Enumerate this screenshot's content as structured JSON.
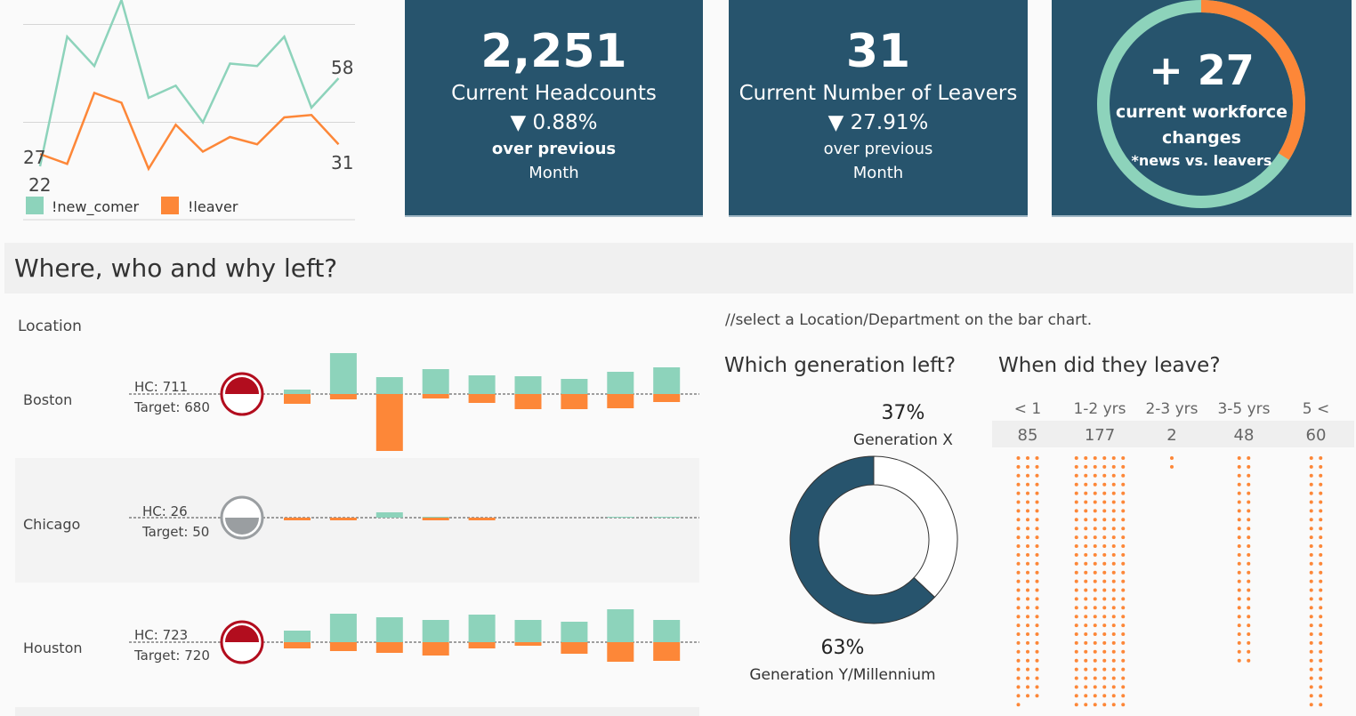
{
  "colors": {
    "new_comer": "#8dd3bb",
    "leaver": "#fd8738",
    "card_bg": "#27546d",
    "alert": "#b20d1e",
    "neutral": "#9a9ea1"
  },
  "kpis": [
    {
      "value": "2,251",
      "label": "Current Headcounts",
      "change": "▼ 0.88%",
      "sub1": "over previous",
      "sub2": "Month"
    },
    {
      "value": "31",
      "label": "Current Number of Leavers",
      "change": "▼ 27.91%",
      "sub1": "over previous",
      "sub2": "Month"
    }
  ],
  "workforce": {
    "value": "+ 27",
    "line1": "current workforce",
    "line2": "changes",
    "line3": "*news vs. leavers",
    "new_share": 0.66
  },
  "section_title": "Where, who and why left?",
  "location_header": "Location",
  "hint": "//select a Location/Department on the bar chart.",
  "generation_title": "Which generation left?",
  "tenure_title": "When did they leave?",
  "locations": [
    {
      "name": "Boston",
      "hc": "HC: 711",
      "target": "Target: 680",
      "status": "above"
    },
    {
      "name": "Chicago",
      "hc": "HC: 26",
      "target": "Target: 50",
      "status": "below"
    },
    {
      "name": "Houston",
      "hc": "HC: 723",
      "target": "Target: 720",
      "status": "above"
    }
  ],
  "chart_data": [
    {
      "type": "line",
      "legend": [
        "!new_comer",
        "!leaver"
      ],
      "grid": true,
      "ylim": [
        0,
        90
      ],
      "series": [
        {
          "name": "!new_comer",
          "values": [
            22,
            75,
            63,
            90,
            50,
            55,
            40,
            64,
            63,
            75,
            46,
            58
          ],
          "start_label": "22",
          "end_label": "58"
        },
        {
          "name": "!leaver",
          "values": [
            27,
            23,
            52,
            48,
            21,
            39,
            28,
            34,
            31,
            42,
            43,
            31
          ],
          "start_label": "27",
          "end_label": "31"
        }
      ]
    },
    {
      "type": "bar",
      "title": "Location",
      "series": [
        {
          "location": "Boston",
          "new_comer": [
            5,
            46,
            19,
            28,
            21,
            20,
            17,
            25,
            30
          ],
          "leaver": [
            11,
            6,
            64,
            5,
            10,
            17,
            17,
            16,
            9
          ]
        },
        {
          "location": "Chicago",
          "new_comer": [
            0,
            0,
            6,
            1,
            0,
            0,
            0,
            1,
            1
          ],
          "leaver": [
            3,
            3,
            0,
            3,
            3,
            0,
            0,
            0,
            0
          ]
        },
        {
          "location": "Houston",
          "new_comer": [
            13,
            32,
            28,
            25,
            31,
            25,
            23,
            37,
            25
          ],
          "leaver": [
            7,
            10,
            12,
            15,
            7,
            4,
            13,
            22,
            21
          ]
        }
      ]
    },
    {
      "type": "pie",
      "title": "Which generation left?",
      "slices": [
        {
          "label": "Generation X",
          "value": 37,
          "text": "37%"
        },
        {
          "label": "Generation Y/Millennium",
          "value": 63,
          "text": "63%"
        }
      ]
    },
    {
      "type": "scatter",
      "title": "When did they leave?",
      "categories": [
        "< 1",
        "1-2 yrs",
        "2-3 yrs",
        "3-5 yrs",
        "5 <"
      ],
      "values": [
        85,
        177,
        2,
        48,
        60
      ],
      "dots_per_row": [
        3,
        6,
        1,
        2,
        2
      ]
    }
  ]
}
